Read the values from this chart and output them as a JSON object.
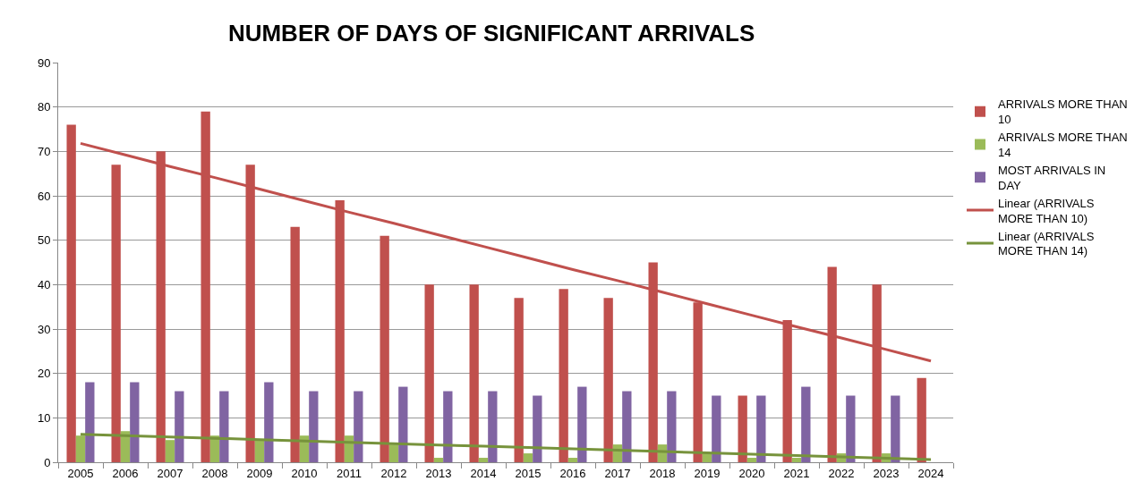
{
  "chart_data": {
    "type": "bar",
    "title": "NUMBER OF DAYS OF SIGNIFICANT ARRIVALS",
    "categories": [
      "2005",
      "2006",
      "2007",
      "2008",
      "2009",
      "2010",
      "2011",
      "2012",
      "2013",
      "2014",
      "2015",
      "2016",
      "2017",
      "2018",
      "2019",
      "2020",
      "2021",
      "2022",
      "2023",
      "2024"
    ],
    "series": [
      {
        "name": "ARRIVALS MORE THAN 10",
        "color": "#c0504d",
        "values": [
          76,
          67,
          70,
          79,
          67,
          53,
          59,
          51,
          40,
          40,
          37,
          39,
          37,
          45,
          36,
          15,
          32,
          44,
          40,
          19
        ]
      },
      {
        "name": "ARRIVALS MORE THAN 14",
        "color": "#9bbb59",
        "values": [
          6,
          7,
          5,
          6,
          5,
          6,
          6,
          4,
          1,
          1,
          2,
          1,
          4,
          4,
          2,
          1,
          1,
          2,
          2,
          0
        ]
      },
      {
        "name": "MOST ARRIVALS IN DAY",
        "color": "#8064a2",
        "values": [
          18,
          18,
          16,
          16,
          18,
          16,
          16,
          17,
          16,
          16,
          15,
          17,
          16,
          16,
          15,
          15,
          17,
          15,
          15,
          null
        ]
      },
      {
        "name": "Linear (ARRIVALS MORE THAN 10)",
        "type": "line",
        "color": "#c0504d",
        "values": [
          71.8,
          69.2,
          66.6,
          64.1,
          61.5,
          58.9,
          56.3,
          53.8,
          51.2,
          48.6,
          46.0,
          43.4,
          40.9,
          38.3,
          35.7,
          33.1,
          30.5,
          28.0,
          25.4,
          22.8
        ]
      },
      {
        "name": "Linear (ARRIVALS MORE THAN 14)",
        "type": "line",
        "color": "#77933c",
        "values": [
          6.3,
          6.0,
          5.7,
          5.4,
          5.1,
          4.8,
          4.5,
          4.2,
          3.9,
          3.6,
          3.3,
          3.0,
          2.7,
          2.4,
          2.1,
          1.8,
          1.5,
          1.2,
          0.9,
          0.6
        ]
      }
    ],
    "ylim": [
      0,
      90
    ],
    "yticks": [
      0,
      10,
      20,
      30,
      40,
      50,
      60,
      70,
      80,
      90
    ],
    "grid": "y",
    "legend": "right",
    "marker": "none",
    "line_style": "solid"
  }
}
